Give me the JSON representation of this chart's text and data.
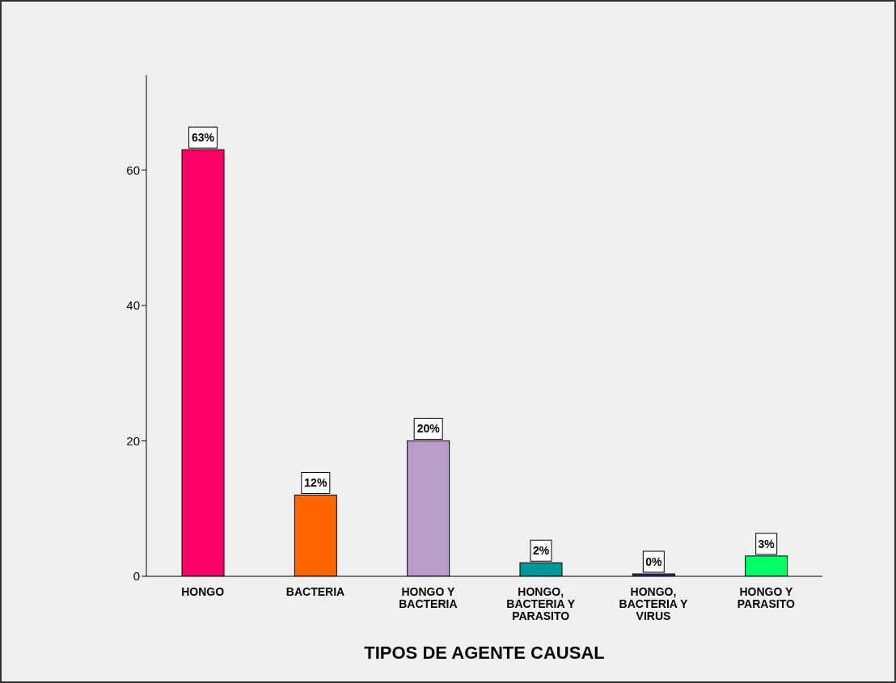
{
  "chart_data": {
    "type": "bar",
    "xlabel": "TIPOS DE AGENTE CAUSAL",
    "categories": [
      "HONGO",
      "BACTERIA",
      "HONGO Y BACTERIA",
      "HONGO, BACTERIA Y PARASITO",
      "HONGO, BACTERIA Y VIRUS",
      "HONGO Y PARASITO"
    ],
    "values": [
      63,
      12,
      20,
      2,
      0,
      3
    ],
    "value_labels": [
      "63%",
      "12%",
      "20%",
      "2%",
      "0%",
      "3%"
    ],
    "colors": [
      "#ff0066",
      "#ff6600",
      "#b99cc9",
      "#009999",
      "#333399",
      "#00ff66"
    ],
    "ylim": [
      0,
      74
    ],
    "yticks": [
      0,
      20,
      40,
      60
    ]
  }
}
